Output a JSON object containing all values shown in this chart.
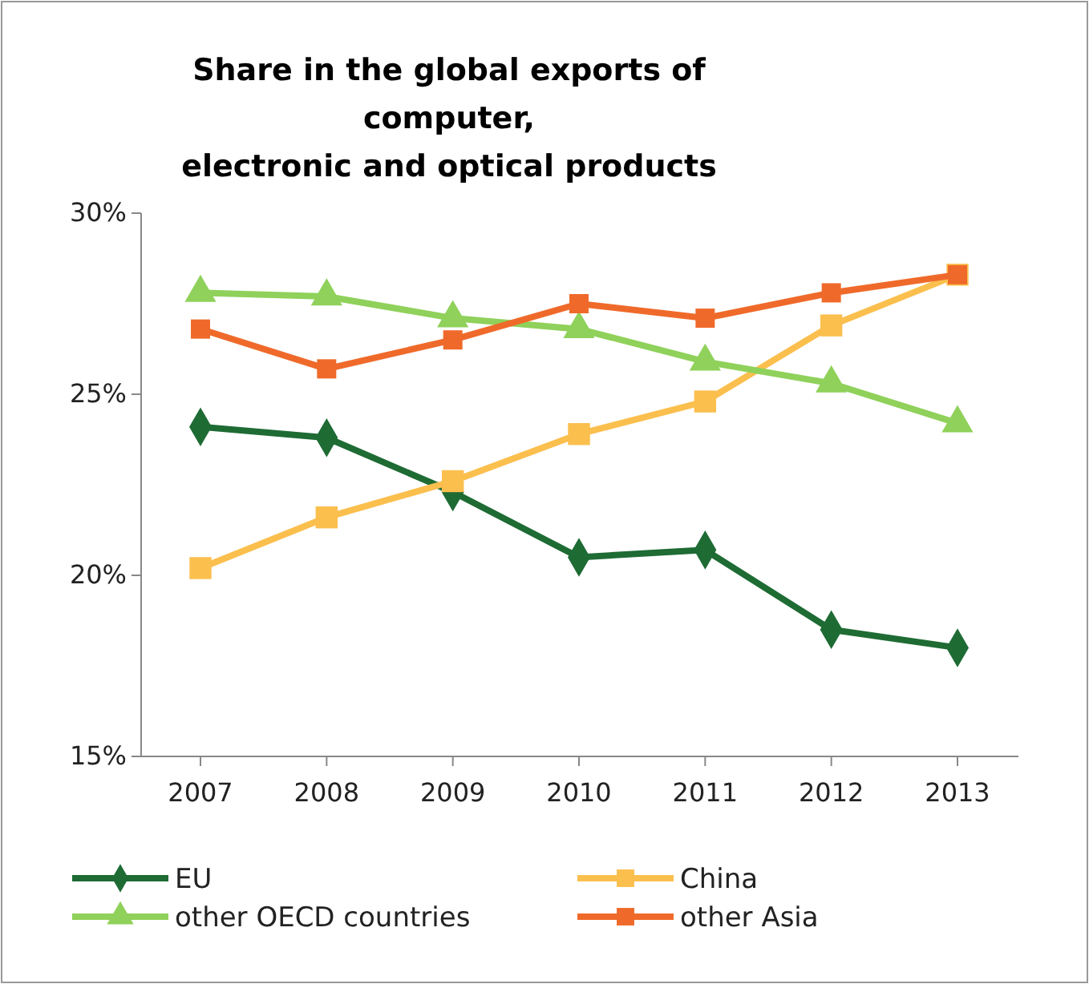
{
  "chart_data": {
    "type": "line",
    "title": "Share in the global exports of\ncomputer,\nelectronic and optical products",
    "categories": [
      "2007",
      "2008",
      "2009",
      "2010",
      "2011",
      "2012",
      "2013"
    ],
    "ylim": [
      15,
      30
    ],
    "yticks": [
      {
        "value": 15,
        "label": "15%"
      },
      {
        "value": 20,
        "label": "20%"
      },
      {
        "value": 25,
        "label": "25%"
      },
      {
        "value": 30,
        "label": "30%"
      }
    ],
    "grid": false,
    "legend": "bottom",
    "series": [
      {
        "name": "EU",
        "color": "#1e6b34",
        "marker": "diamond",
        "values": [
          24.1,
          23.8,
          22.3,
          20.5,
          20.7,
          18.5,
          18.0
        ]
      },
      {
        "name": "China",
        "color": "#fbbf4e",
        "marker": "square",
        "values": [
          20.2,
          21.6,
          22.6,
          23.9,
          24.8,
          26.9,
          28.3
        ]
      },
      {
        "name": "other OECD countries",
        "color": "#8fd15a",
        "marker": "triangle",
        "values": [
          27.8,
          27.7,
          27.1,
          26.8,
          25.9,
          25.3,
          24.2
        ]
      },
      {
        "name": "other Asia",
        "color": "#ef6a2a",
        "marker": "square",
        "values": [
          26.8,
          25.7,
          26.5,
          27.5,
          27.1,
          27.8,
          28.3
        ]
      }
    ]
  }
}
